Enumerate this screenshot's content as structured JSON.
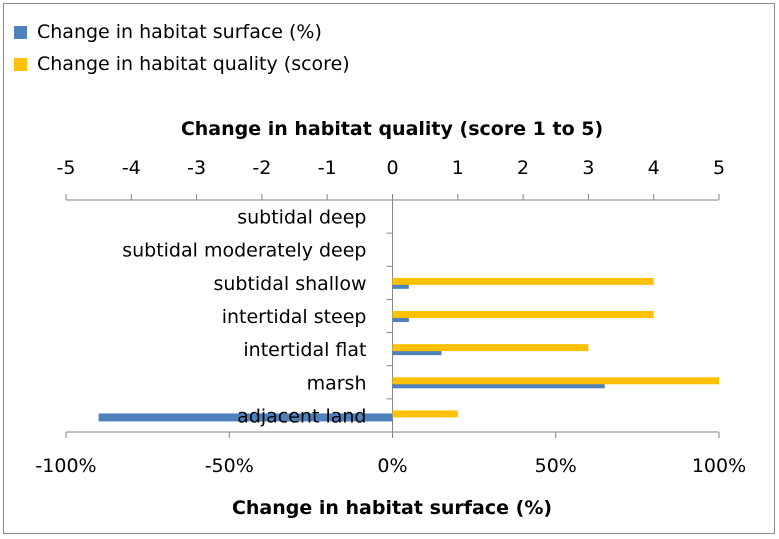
{
  "chart_data": {
    "type": "bar",
    "orientation": "horizontal",
    "categories": [
      "subtidal deep",
      "subtidal moderately deep",
      "subtidal shallow",
      "intertidal steep",
      "intertidal flat",
      "marsh",
      "adjacent land"
    ],
    "series": [
      {
        "name": "Change in habitat surface (%)",
        "color": "#4f81bd",
        "axis": "bottom",
        "values": [
          0,
          0,
          5,
          5,
          15,
          65,
          -90
        ]
      },
      {
        "name": "Change in habitat quality (score)",
        "color": "#ffc000",
        "axis": "top",
        "values": [
          0,
          0,
          4,
          4,
          3,
          5,
          1
        ]
      }
    ],
    "top_axis": {
      "label": "Change in habitat quality (score 1 to 5)",
      "range": [
        -5,
        5
      ],
      "ticks": [
        "-5",
        "-4",
        "-3",
        "-2",
        "-1",
        "0",
        "1",
        "2",
        "3",
        "4",
        "5"
      ]
    },
    "bottom_axis": {
      "label": "Change in habitat surface (%)",
      "range": [
        -100,
        100
      ],
      "ticks": [
        "-100%",
        "-50%",
        "0%",
        "50%",
        "100%"
      ]
    },
    "legend_position": "top-left",
    "grid": false
  }
}
